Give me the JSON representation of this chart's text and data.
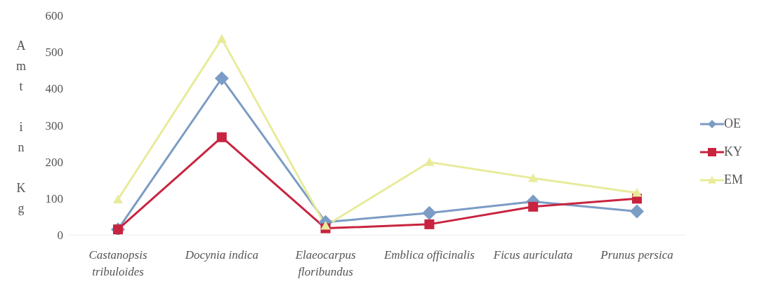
{
  "chart_data": {
    "type": "line",
    "ylabel": "Amt in Kg",
    "categories": [
      "Castanopsis tribuloides",
      "Docynia indica",
      "Elaeocarpus floribundus",
      "Emblica officinalis",
      "Ficus auriculata",
      "Prunus persica"
    ],
    "series": [
      {
        "name": "OE",
        "color": "#7b9cc4",
        "marker": "diamond",
        "values": [
          15,
          428,
          35,
          60,
          91,
          64
        ]
      },
      {
        "name": "KY",
        "color": "#c8243f",
        "marker": "square",
        "values": [
          15,
          267,
          18,
          29,
          77,
          99
        ]
      },
      {
        "name": "EM",
        "color": "#e8eb9a",
        "marker": "triangle",
        "values": [
          97,
          536,
          25,
          199,
          155,
          115
        ]
      }
    ],
    "ylim": [
      0,
      600
    ],
    "yticks": [
      0,
      100,
      200,
      300,
      400,
      500,
      600
    ],
    "grid": false,
    "legend": "right"
  }
}
